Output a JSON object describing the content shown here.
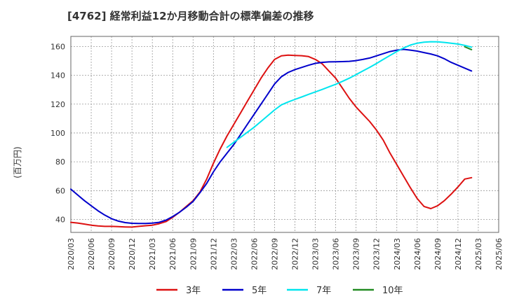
{
  "chart_data": {
    "type": "line",
    "title": "[4762]  経常利益12か月移動合計の標準偏差の推移",
    "ylabel": "(百万円)",
    "xlabel": "",
    "ylim": [
      31,
      167
    ],
    "y_ticks": [
      40,
      60,
      80,
      100,
      120,
      140,
      160
    ],
    "x_tick_labels": [
      "2020/03",
      "2020/06",
      "2020/09",
      "2020/12",
      "2021/03",
      "2021/06",
      "2021/09",
      "2021/12",
      "2022/03",
      "2022/06",
      "2022/09",
      "2022/12",
      "2023/03",
      "2023/06",
      "2023/09",
      "2023/12",
      "2024/03",
      "2024/06",
      "2024/09",
      "2024/12",
      "2025/03",
      "2025/06"
    ],
    "grid": true,
    "legend_position": "bottom",
    "series": [
      {
        "name": "3年",
        "color": "#dd1111",
        "points": [
          [
            "2020/03",
            38
          ],
          [
            "2020/04",
            37.5
          ],
          [
            "2020/05",
            36.8
          ],
          [
            "2020/06",
            36
          ],
          [
            "2020/07",
            35.5
          ],
          [
            "2020/08",
            35.2
          ],
          [
            "2020/09",
            35.2
          ],
          [
            "2020/10",
            35
          ],
          [
            "2020/11",
            34.8
          ],
          [
            "2020/12",
            34.7
          ],
          [
            "2021/01",
            35.2
          ],
          [
            "2021/02",
            35.6
          ],
          [
            "2021/03",
            36
          ],
          [
            "2021/04",
            37
          ],
          [
            "2021/05",
            38.5
          ],
          [
            "2021/06",
            41.5
          ],
          [
            "2021/07",
            45
          ],
          [
            "2021/08",
            49
          ],
          [
            "2021/09",
            53
          ],
          [
            "2021/10",
            59
          ],
          [
            "2021/11",
            68
          ],
          [
            "2021/12",
            79
          ],
          [
            "2022/01",
            89
          ],
          [
            "2022/02",
            98
          ],
          [
            "2022/03",
            106
          ],
          [
            "2022/04",
            114
          ],
          [
            "2022/05",
            122
          ],
          [
            "2022/06",
            130
          ],
          [
            "2022/07",
            138
          ],
          [
            "2022/08",
            145
          ],
          [
            "2022/09",
            151
          ],
          [
            "2022/10",
            153.5
          ],
          [
            "2022/11",
            154
          ],
          [
            "2022/12",
            153.8
          ],
          [
            "2023/01",
            153.6
          ],
          [
            "2023/02",
            153
          ],
          [
            "2023/03",
            151
          ],
          [
            "2023/04",
            148
          ],
          [
            "2023/05",
            143
          ],
          [
            "2023/06",
            138
          ],
          [
            "2023/07",
            131
          ],
          [
            "2023/08",
            124
          ],
          [
            "2023/09",
            118
          ],
          [
            "2023/10",
            113
          ],
          [
            "2023/11",
            108
          ],
          [
            "2023/12",
            102
          ],
          [
            "2024/01",
            95
          ],
          [
            "2024/02",
            86
          ],
          [
            "2024/03",
            78
          ],
          [
            "2024/04",
            70
          ],
          [
            "2024/05",
            62
          ],
          [
            "2024/06",
            54.5
          ],
          [
            "2024/07",
            49
          ],
          [
            "2024/08",
            47.5
          ],
          [
            "2024/09",
            49.5
          ],
          [
            "2024/10",
            53
          ],
          [
            "2024/11",
            57.5
          ],
          [
            "2024/12",
            62.5
          ],
          [
            "2025/01",
            68
          ],
          [
            "2025/02",
            69
          ]
        ]
      },
      {
        "name": "5年",
        "color": "#0000cc",
        "points": [
          [
            "2020/03",
            61
          ],
          [
            "2020/04",
            57
          ],
          [
            "2020/05",
            53
          ],
          [
            "2020/06",
            49.5
          ],
          [
            "2020/07",
            46
          ],
          [
            "2020/08",
            43
          ],
          [
            "2020/09",
            40.5
          ],
          [
            "2020/10",
            38.8
          ],
          [
            "2020/11",
            37.8
          ],
          [
            "2020/12",
            37.3
          ],
          [
            "2021/01",
            37.2
          ],
          [
            "2021/02",
            37.2
          ],
          [
            "2021/03",
            37.4
          ],
          [
            "2021/04",
            38
          ],
          [
            "2021/05",
            39.5
          ],
          [
            "2021/06",
            42
          ],
          [
            "2021/07",
            45
          ],
          [
            "2021/08",
            48.5
          ],
          [
            "2021/09",
            52.5
          ],
          [
            "2021/10",
            58.5
          ],
          [
            "2021/11",
            65
          ],
          [
            "2021/12",
            73
          ],
          [
            "2022/01",
            80
          ],
          [
            "2022/02",
            86
          ],
          [
            "2022/03",
            92
          ],
          [
            "2022/04",
            99
          ],
          [
            "2022/05",
            106
          ],
          [
            "2022/06",
            113
          ],
          [
            "2022/07",
            120
          ],
          [
            "2022/08",
            127
          ],
          [
            "2022/09",
            134
          ],
          [
            "2022/10",
            139
          ],
          [
            "2022/11",
            142
          ],
          [
            "2022/12",
            144
          ],
          [
            "2023/01",
            145.5
          ],
          [
            "2023/02",
            147
          ],
          [
            "2023/03",
            148.3
          ],
          [
            "2023/04",
            149
          ],
          [
            "2023/05",
            149.3
          ],
          [
            "2023/06",
            149.4
          ],
          [
            "2023/07",
            149.5
          ],
          [
            "2023/08",
            149.7
          ],
          [
            "2023/09",
            150.2
          ],
          [
            "2023/10",
            151
          ],
          [
            "2023/11",
            152
          ],
          [
            "2023/12",
            153.5
          ],
          [
            "2024/01",
            155
          ],
          [
            "2024/02",
            156.5
          ],
          [
            "2024/03",
            157.5
          ],
          [
            "2024/04",
            158
          ],
          [
            "2024/05",
            157.5
          ],
          [
            "2024/06",
            156.8
          ],
          [
            "2024/07",
            155.8
          ],
          [
            "2024/08",
            154.8
          ],
          [
            "2024/09",
            153.5
          ],
          [
            "2024/10",
            151.5
          ],
          [
            "2024/11",
            149
          ],
          [
            "2024/12",
            147
          ],
          [
            "2025/01",
            145
          ],
          [
            "2025/02",
            143
          ]
        ]
      },
      {
        "name": "7年",
        "color": "#00e5ee",
        "points": [
          [
            "2022/02",
            90
          ],
          [
            "2022/03",
            93.5
          ],
          [
            "2022/04",
            97
          ],
          [
            "2022/05",
            100.5
          ],
          [
            "2022/06",
            104
          ],
          [
            "2022/07",
            108
          ],
          [
            "2022/08",
            112
          ],
          [
            "2022/09",
            116
          ],
          [
            "2022/10",
            119.5
          ],
          [
            "2022/11",
            121.5
          ],
          [
            "2022/12",
            123.3
          ],
          [
            "2023/01",
            125
          ],
          [
            "2023/02",
            126.8
          ],
          [
            "2023/03",
            128.5
          ],
          [
            "2023/04",
            130.2
          ],
          [
            "2023/05",
            132
          ],
          [
            "2023/06",
            133.8
          ],
          [
            "2023/07",
            135.8
          ],
          [
            "2023/08",
            138
          ],
          [
            "2023/09",
            140.5
          ],
          [
            "2023/10",
            143
          ],
          [
            "2023/11",
            145.5
          ],
          [
            "2023/12",
            148.2
          ],
          [
            "2024/01",
            151
          ],
          [
            "2024/02",
            153.8
          ],
          [
            "2024/03",
            156.5
          ],
          [
            "2024/04",
            159
          ],
          [
            "2024/05",
            161
          ],
          [
            "2024/06",
            162.3
          ],
          [
            "2024/07",
            163
          ],
          [
            "2024/08",
            163.3
          ],
          [
            "2024/09",
            163.2
          ],
          [
            "2024/10",
            162.8
          ],
          [
            "2024/11",
            162.3
          ],
          [
            "2024/12",
            161.7
          ],
          [
            "2025/01",
            160.8
          ],
          [
            "2025/02",
            159.5
          ]
        ]
      },
      {
        "name": "10年",
        "color": "#228b22",
        "points": [
          [
            "2025/01",
            159.8
          ],
          [
            "2025/02",
            157.8
          ]
        ]
      }
    ]
  }
}
